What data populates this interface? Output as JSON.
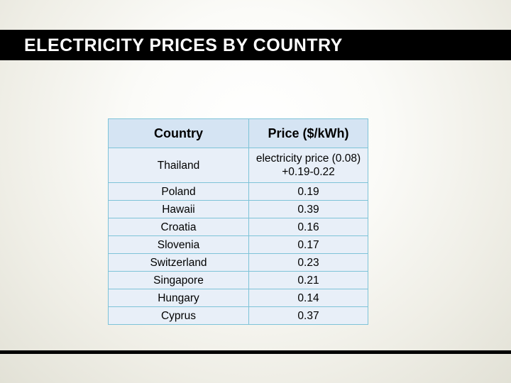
{
  "slide": {
    "title": "ELECTRICITY PRICES BY COUNTRY"
  },
  "table": {
    "headers": [
      "Country",
      "Price ($/kWh)"
    ],
    "rows": [
      [
        "Thailand",
        "electricity price (0.08) +0.19-0.22"
      ],
      [
        "Poland",
        "0.19"
      ],
      [
        "Hawaii",
        "0.39"
      ],
      [
        "Croatia",
        "0.16"
      ],
      [
        "Slovenia",
        "0.17"
      ],
      [
        "Switzerland",
        "0.23"
      ],
      [
        "Singapore",
        "0.21"
      ],
      [
        "Hungary",
        "0.14"
      ],
      [
        "Cyprus",
        "0.37"
      ]
    ]
  },
  "colors": {
    "title_bar": "#000000",
    "title_text": "#ffffff",
    "table_border": "#7ec3d8",
    "header_fill": "#d5e4f3",
    "cell_fill": "#e8eff8"
  }
}
